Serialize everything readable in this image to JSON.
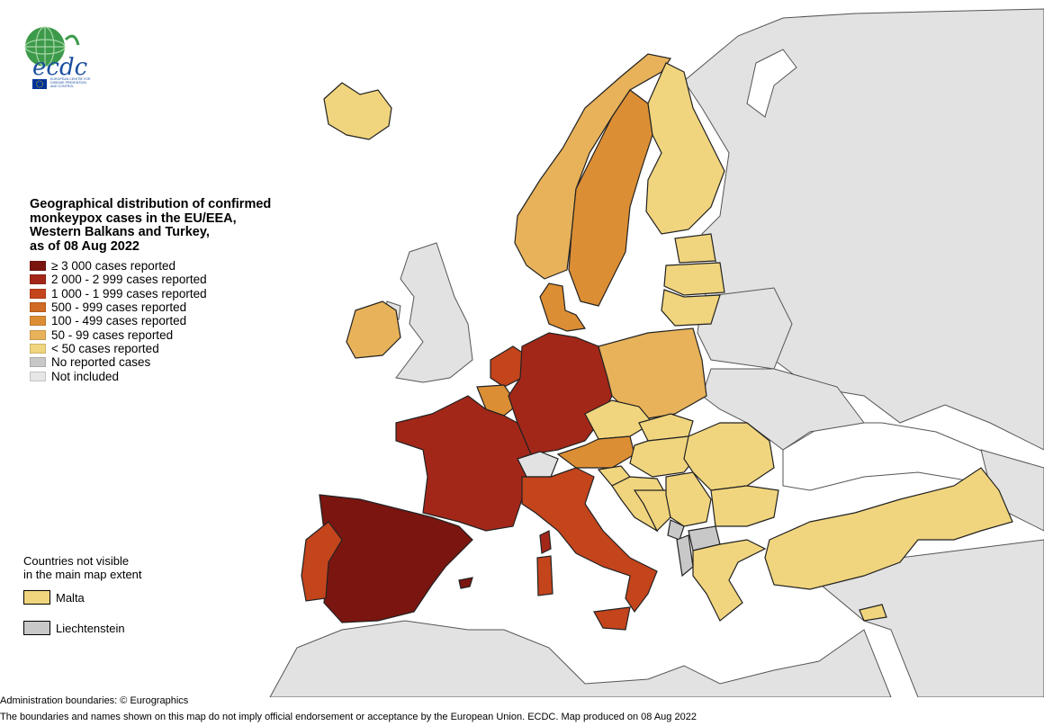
{
  "logo": {
    "text": "ecdc",
    "subtitle_lines": [
      "EUROPEAN CENTRE FOR",
      "DISEASE PREVENTION",
      "AND CONTROL"
    ]
  },
  "colors": {
    "sea": "#ffffff",
    "nonincluded": "#e2e2e2",
    "border": "#555555",
    "cat_3000": "#7a1510",
    "cat_2000": "#a32718",
    "cat_1000": "#c4441c",
    "cat_500": "#d06a24",
    "cat_100": "#dc8e34",
    "cat_50": "#e8b25a",
    "cat_lt50": "#f0d57e",
    "no_cases": "#c8c8c8"
  },
  "legend": {
    "title_lines": [
      "Geographical distribution of confirmed",
      "monkeypox cases in the EU/EEA,",
      "Western Balkans and Turkey,",
      "as of 08 Aug 2022"
    ],
    "items": [
      {
        "label": "≥ 3 000 cases reported",
        "color": "#7a1510"
      },
      {
        "label": "2 000 - 2 999 cases reported",
        "color": "#a32718"
      },
      {
        "label": "1 000 - 1 999 cases reported",
        "color": "#c4441c"
      },
      {
        "label": "500 - 999 cases reported",
        "color": "#d06a24"
      },
      {
        "label": "100 - 499 cases reported",
        "color": "#dc8e34"
      },
      {
        "label": "50 - 99 cases reported",
        "color": "#e8b25a"
      },
      {
        "label": "< 50 cases reported",
        "color": "#f0d57e"
      },
      {
        "label": "No reported cases",
        "color": "#c8c8c8"
      },
      {
        "label": "Not included",
        "color": "#e6e6e6"
      }
    ]
  },
  "not_visible": {
    "heading_lines": [
      "Countries not visible",
      "in the main map extent"
    ],
    "items": [
      {
        "label": "Malta",
        "color": "#f0d57e"
      },
      {
        "label": "Liechtenstein",
        "color": "#c8c8c8"
      }
    ]
  },
  "footer": {
    "line1": "Administration boundaries: © Eurographics",
    "line2": "The boundaries and names shown on this map do not imply official endorsement or acceptance by the European Union. ECDC. Map produced on 08 Aug 2022"
  }
}
